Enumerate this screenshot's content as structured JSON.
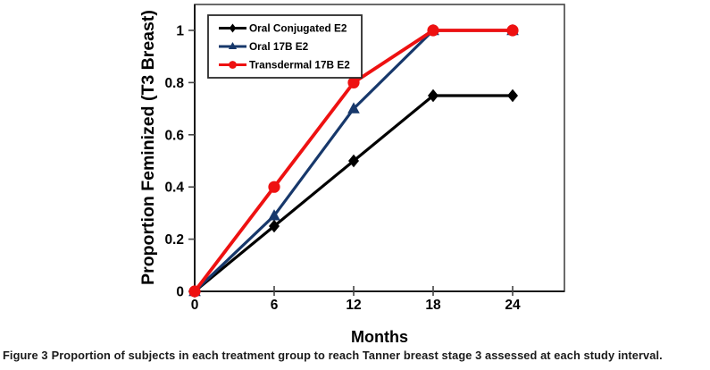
{
  "caption": {
    "prefix": "Figure 3",
    "text": "Proportion of subjects in each treatment group to reach Tanner breast stage 3 assessed at each study interval."
  },
  "chart_data": {
    "type": "line",
    "x": [
      0,
      6,
      12,
      18,
      24
    ],
    "xlabel": "Months",
    "ylabel": "Proportion Feminized (T3 Breast)",
    "xlim": [
      0,
      28
    ],
    "ylim": [
      0,
      1.1
    ],
    "xticks": [
      0,
      6,
      12,
      18,
      24
    ],
    "xtick_labels": [
      "0",
      "6",
      "12",
      "18",
      "24"
    ],
    "yticks": [
      0,
      0.2,
      0.4,
      0.6,
      0.8,
      1
    ],
    "ytick_labels": [
      "0",
      "0.2",
      "0.4",
      "0.6",
      "0.8",
      "1"
    ],
    "grid": false,
    "legend_position": "top-left-inside",
    "series": [
      {
        "name": "Oral Conjugated E2",
        "color": "#000000",
        "marker": "diamond",
        "values": [
          0,
          0.25,
          0.5,
          0.75,
          0.75
        ]
      },
      {
        "name": "Oral 17B E2",
        "color": "#17386B",
        "marker": "triangle",
        "values": [
          0,
          0.29,
          0.7,
          1,
          1
        ]
      },
      {
        "name": "Transdermal 17B E2",
        "color": "#EE1111",
        "marker": "circle",
        "values": [
          0,
          0.4,
          0.8,
          1,
          1
        ]
      }
    ],
    "frame_color": "#454545",
    "axis_text_color": "#000000"
  }
}
